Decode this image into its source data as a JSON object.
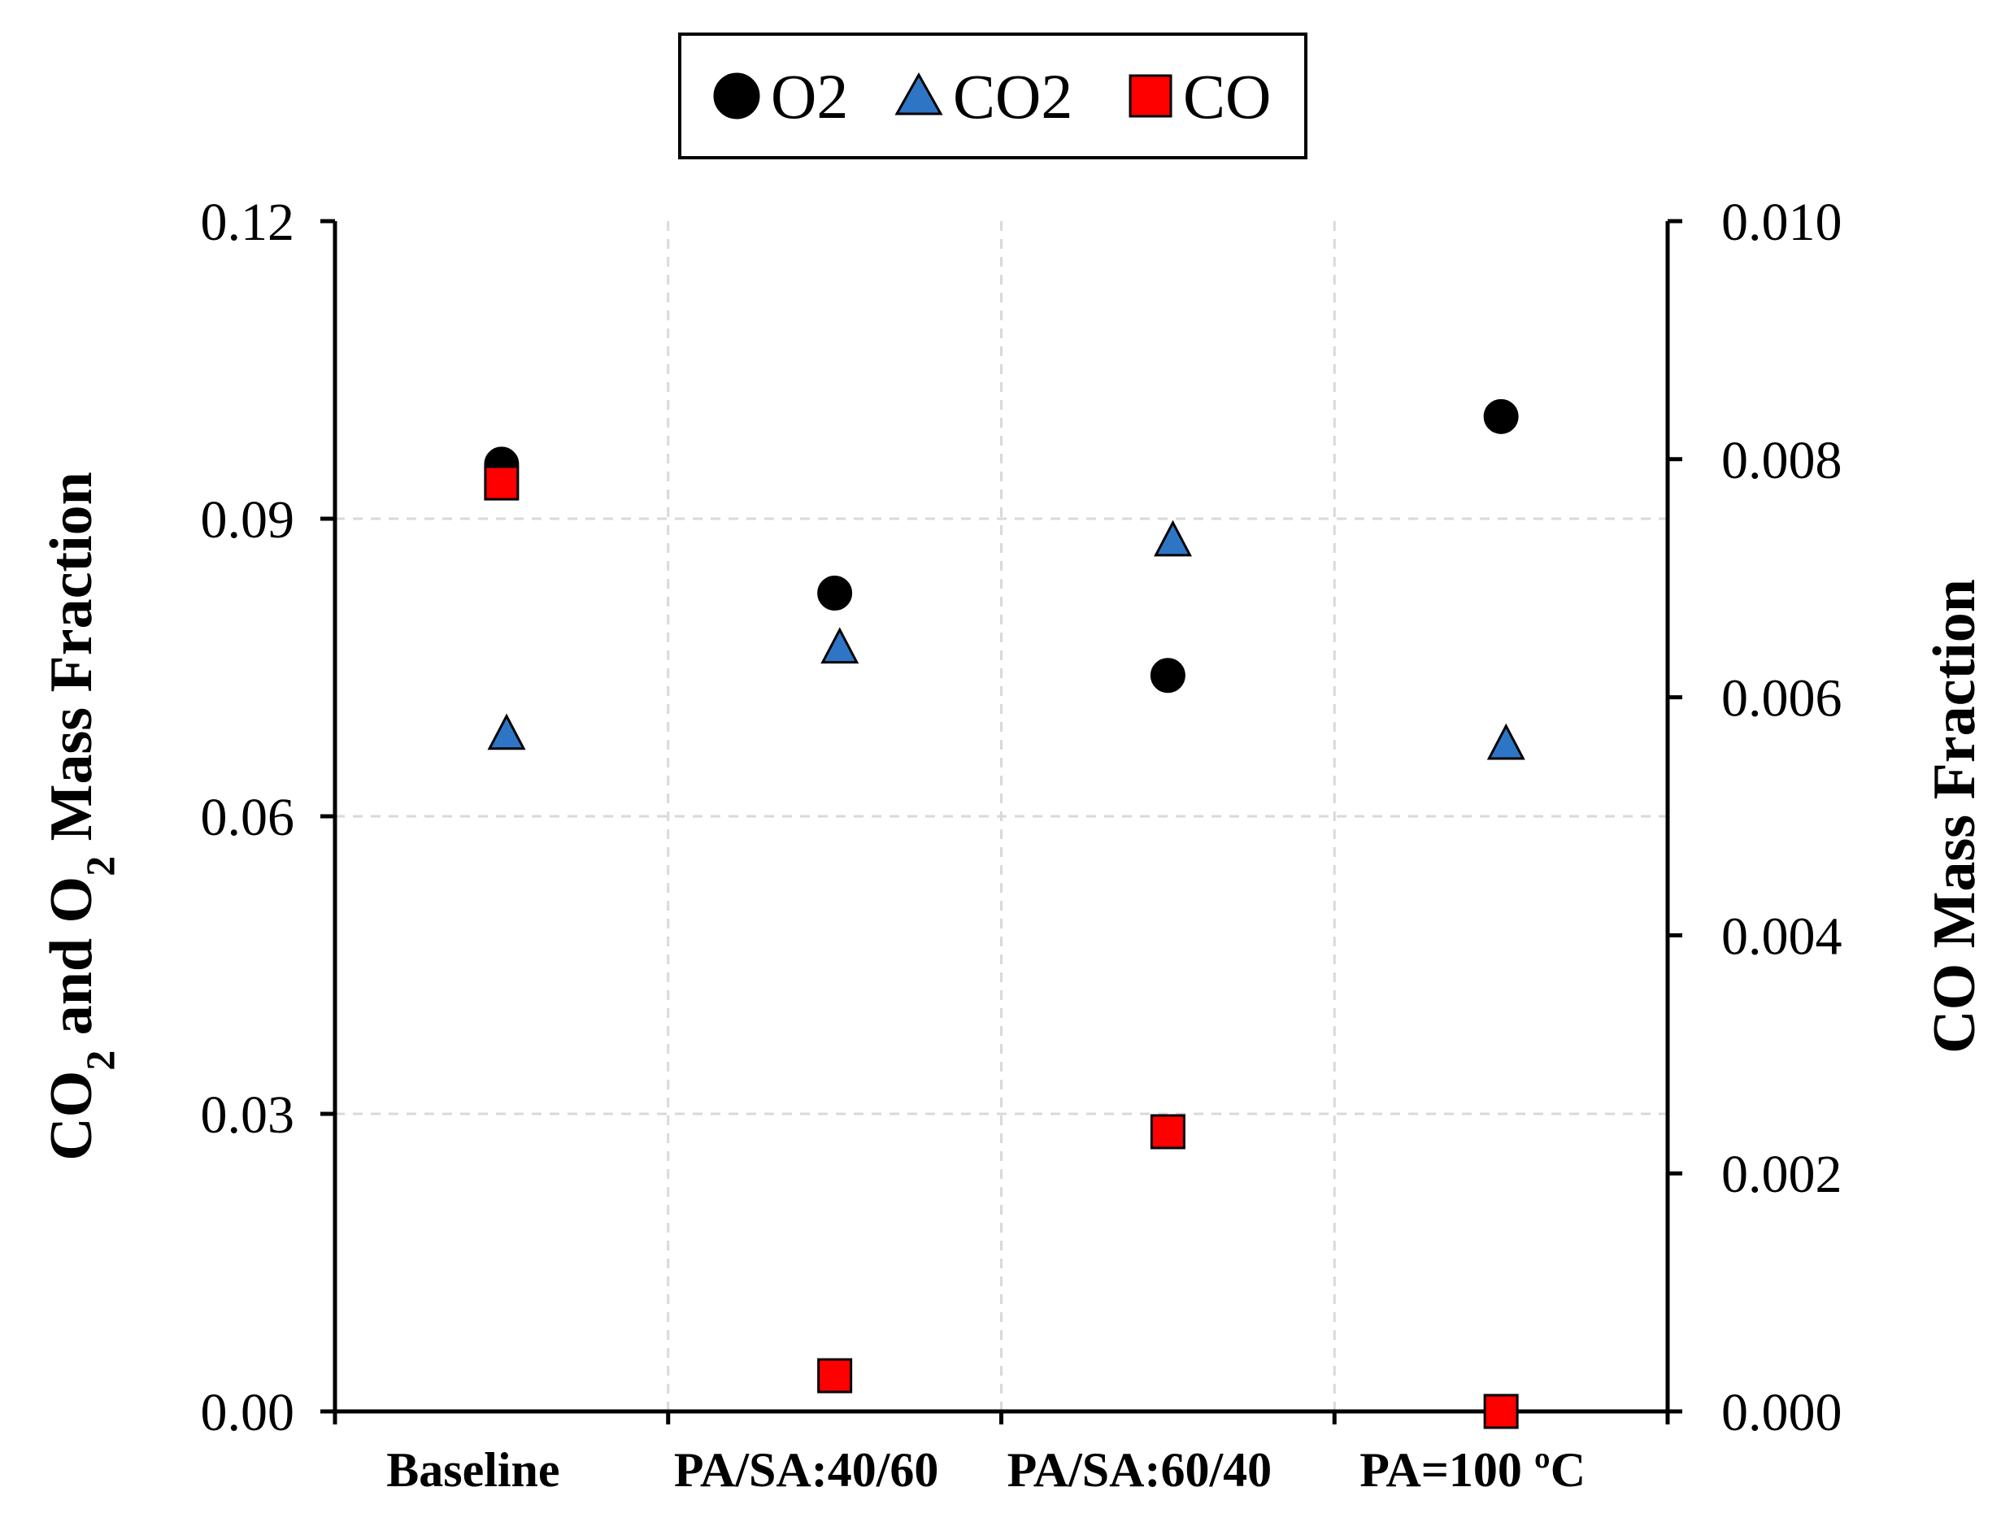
{
  "chart_data": {
    "type": "scatter",
    "categories": [
      "Baseline",
      "PA/SA:40/60",
      "PA/SA:60/40",
      "PA=100 ºC"
    ],
    "y_left": {
      "label_parts": [
        "CO",
        "2",
        " and O",
        "2",
        " Mass Fraction"
      ],
      "ylim": [
        0,
        0.12
      ],
      "ticks": [
        0.0,
        0.03,
        0.06,
        0.09,
        0.12
      ],
      "tick_labels": [
        "0.00",
        "0.03",
        "0.06",
        "0.09",
        "0.12"
      ]
    },
    "y_right": {
      "label": "CO Mass Fraction",
      "ylim": [
        0,
        0.01
      ],
      "ticks": [
        0.0,
        0.002,
        0.004,
        0.006,
        0.008,
        0.01
      ],
      "tick_labels": [
        "0.000",
        "0.002",
        "0.004",
        "0.006",
        "0.008",
        "0.010"
      ]
    },
    "series": [
      {
        "name": "O2",
        "axis": "left",
        "marker": "circle",
        "color": "#000000",
        "offset": 0.0,
        "values": [
          0.0955,
          0.0825,
          0.0742,
          0.1003
        ]
      },
      {
        "name": "CO2",
        "axis": "left",
        "marker": "triangle",
        "color": "#2e75c6",
        "offset": 0.015,
        "values": [
          0.0683,
          0.077,
          0.0878,
          0.0673
        ]
      },
      {
        "name": "CO",
        "axis": "right",
        "marker": "square",
        "color": "#ff0000",
        "offset": 0.0,
        "values": [
          0.0078,
          0.0003,
          0.00235,
          0.0
        ]
      }
    ],
    "legend": {
      "position": "top-center",
      "entries": [
        "O2",
        "CO2",
        "CO"
      ]
    },
    "grid": true
  }
}
